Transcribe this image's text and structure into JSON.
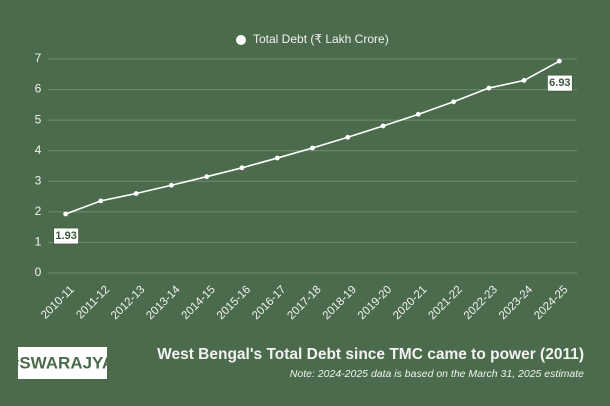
{
  "chart_data": {
    "type": "line",
    "title": "West Bengal's Total Debt since TMC came to power (2011)",
    "note": "Note: 2024-2025 data is based on the March 31, 2025 estimate",
    "brand": "#SWARAJYA",
    "categories": [
      "2010-11",
      "2011-12",
      "2012-13",
      "2013-14",
      "2014-15",
      "2015-16",
      "2016-17",
      "2017-18",
      "2018-19",
      "2019-20",
      "2020-21",
      "2021-22",
      "2022-23",
      "2023-24",
      "2024-25"
    ],
    "series": [
      {
        "name": "Total Debt (₹ Lakh Crore)",
        "color": "#ffffff",
        "values": [
          1.93,
          2.36,
          2.6,
          2.87,
          3.15,
          3.44,
          3.76,
          4.09,
          4.44,
          4.81,
          5.19,
          5.6,
          6.05,
          6.3,
          6.93
        ]
      }
    ],
    "point_labels": "ends",
    "ylim": [
      0,
      7
    ],
    "yticks": [
      0,
      1,
      2,
      3,
      4,
      5,
      6,
      7
    ],
    "grid": true,
    "legend": "top"
  }
}
